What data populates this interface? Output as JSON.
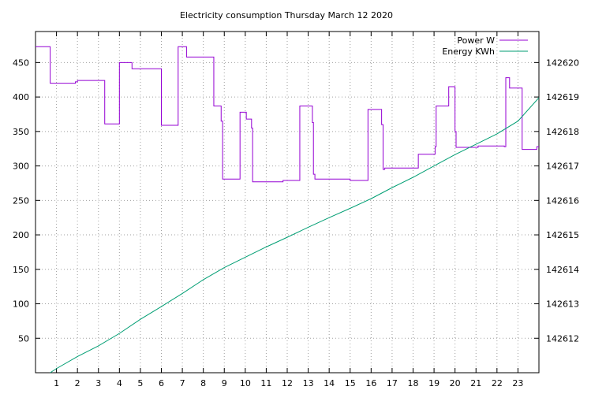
{
  "chart_data": {
    "type": "line",
    "title": "Electricity consumption Thursday March 12 2020",
    "xlabel": "",
    "ylabel": "",
    "xlim": [
      0,
      24
    ],
    "ylim": [
      0,
      495
    ],
    "y2lim": [
      142611.0,
      142620.9
    ],
    "x_ticks": [
      "1",
      "2",
      "3",
      "4",
      "5",
      "6",
      "7",
      "8",
      "9",
      "10",
      "11",
      "12",
      "13",
      "14",
      "15",
      "16",
      "17",
      "18",
      "19",
      "20",
      "21",
      "22",
      "23"
    ],
    "y_ticks": [
      "50",
      "100",
      "150",
      "200",
      "250",
      "300",
      "350",
      "400",
      "450"
    ],
    "y2_ticks": [
      "142612",
      "142613",
      "142614",
      "142615",
      "142616",
      "142617",
      "142618",
      "142619",
      "142620"
    ],
    "grid": true,
    "legend_position": "top-right",
    "series": [
      {
        "name": "Power W",
        "axis": "left",
        "style": "steps",
        "color": "#9400d3",
        "points": [
          [
            0.0,
            473
          ],
          [
            0.7,
            420
          ],
          [
            1.9,
            422
          ],
          [
            2.0,
            424
          ],
          [
            3.3,
            361
          ],
          [
            4.0,
            450
          ],
          [
            4.6,
            441
          ],
          [
            6.0,
            359
          ],
          [
            6.8,
            473
          ],
          [
            7.2,
            458
          ],
          [
            8.5,
            387
          ],
          [
            8.85,
            365
          ],
          [
            8.92,
            281
          ],
          [
            9.75,
            378
          ],
          [
            10.05,
            368
          ],
          [
            10.3,
            355
          ],
          [
            10.35,
            277
          ],
          [
            11.8,
            279
          ],
          [
            12.6,
            387
          ],
          [
            13.2,
            363
          ],
          [
            13.25,
            288
          ],
          [
            13.32,
            281
          ],
          [
            15.0,
            279
          ],
          [
            15.85,
            382
          ],
          [
            16.5,
            360
          ],
          [
            16.57,
            295
          ],
          [
            16.65,
            297
          ],
          [
            18.25,
            317
          ],
          [
            19.05,
            328
          ],
          [
            19.1,
            387
          ],
          [
            19.7,
            415
          ],
          [
            20.0,
            350
          ],
          [
            20.05,
            327
          ],
          [
            21.1,
            329
          ],
          [
            22.35,
            328
          ],
          [
            22.42,
            428
          ],
          [
            22.6,
            413
          ],
          [
            23.2,
            324
          ],
          [
            23.9,
            328
          ]
        ]
      },
      {
        "name": "Energy KWh",
        "axis": "right",
        "style": "lines",
        "color": "#009e73",
        "points": [
          [
            0.7,
            142611.0
          ],
          [
            1.0,
            142611.12
          ],
          [
            2.0,
            142611.47
          ],
          [
            3.0,
            142611.78
          ],
          [
            4.0,
            142612.14
          ],
          [
            5.0,
            142612.55
          ],
          [
            6.0,
            142612.92
          ],
          [
            7.0,
            142613.3
          ],
          [
            8.0,
            142613.7
          ],
          [
            9.0,
            142614.05
          ],
          [
            10.0,
            142614.35
          ],
          [
            11.0,
            142614.65
          ],
          [
            12.0,
            142614.93
          ],
          [
            13.0,
            142615.22
          ],
          [
            14.0,
            142615.5
          ],
          [
            15.0,
            142615.77
          ],
          [
            16.0,
            142616.05
          ],
          [
            17.0,
            142616.37
          ],
          [
            18.0,
            142616.67
          ],
          [
            19.0,
            142617.0
          ],
          [
            20.0,
            142617.33
          ],
          [
            21.0,
            142617.63
          ],
          [
            22.0,
            142617.93
          ],
          [
            23.0,
            142618.3
          ],
          [
            24.0,
            142618.98
          ]
        ]
      }
    ]
  }
}
